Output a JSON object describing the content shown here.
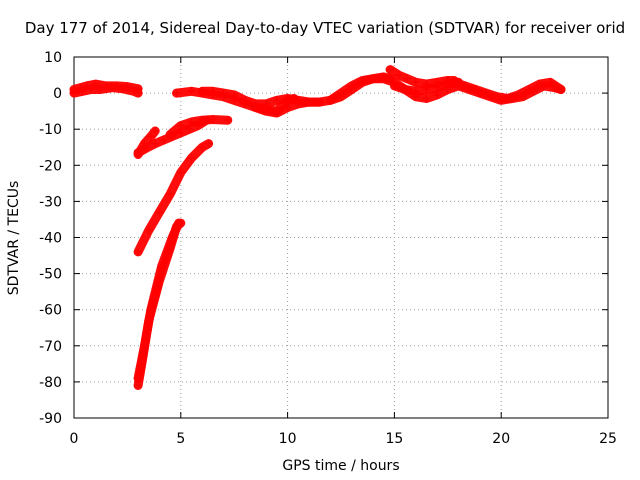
{
  "chart_data": {
    "type": "scatter",
    "title": "Day 177 of 2014, Sidereal Day-to-day VTEC variation (SDTVAR) for receiver orid",
    "xlabel": "GPS time / hours",
    "ylabel": "SDTVAR / TECUs",
    "xlim": [
      0,
      25
    ],
    "ylim": [
      -90,
      10
    ],
    "xticks": [
      "0",
      "5",
      "10",
      "15",
      "20",
      "25"
    ],
    "yticks": [
      "10",
      "0",
      "-10",
      "-20",
      "-30",
      "-40",
      "-50",
      "-60",
      "-70",
      "-80",
      "-90"
    ],
    "grid": true,
    "marker": "+",
    "color": "#ff0000",
    "series": [
      {
        "points": [
          [
            0,
            1
          ],
          [
            0.3,
            1.5
          ],
          [
            0.6,
            2
          ],
          [
            1,
            2.5
          ],
          [
            1.5,
            2
          ],
          [
            2,
            2
          ],
          [
            2.5,
            1.8
          ],
          [
            3,
            1.2
          ]
        ]
      },
      {
        "points": [
          [
            0,
            0
          ],
          [
            0.4,
            0.5
          ],
          [
            0.8,
            1
          ],
          [
            1.2,
            1
          ],
          [
            1.8,
            1.5
          ],
          [
            2.3,
            1.2
          ],
          [
            2.8,
            0.5
          ],
          [
            3,
            0
          ]
        ]
      },
      {
        "points": [
          [
            3,
            -16.5
          ],
          [
            3.4,
            -15.2
          ],
          [
            3.8,
            -14
          ],
          [
            4.2,
            -13
          ],
          [
            4.6,
            -12
          ],
          [
            5,
            -11
          ],
          [
            5.4,
            -10
          ],
          [
            5.8,
            -9
          ],
          [
            6.2,
            -7.5
          ]
        ]
      },
      {
        "points": [
          [
            3,
            -17
          ],
          [
            3.3,
            -14
          ],
          [
            3.6,
            -12
          ],
          [
            3.8,
            -10.5
          ]
        ]
      },
      {
        "points": [
          [
            4.5,
            -11.5
          ],
          [
            5,
            -9
          ],
          [
            5.5,
            -8
          ],
          [
            6,
            -7.5
          ],
          [
            6.5,
            -7.3
          ],
          [
            7.2,
            -7.5
          ]
        ]
      },
      {
        "points": [
          [
            3,
            -44
          ],
          [
            3.5,
            -38
          ],
          [
            4,
            -33
          ],
          [
            4.5,
            -28
          ],
          [
            5,
            -22
          ],
          [
            5.5,
            -18
          ],
          [
            6,
            -15
          ],
          [
            6.3,
            -14
          ]
        ]
      },
      {
        "points": [
          [
            3,
            -81
          ],
          [
            3.2,
            -74
          ],
          [
            3.5,
            -63
          ],
          [
            4,
            -52
          ],
          [
            4.5,
            -43
          ],
          [
            4.8,
            -37
          ],
          [
            5,
            -36
          ]
        ]
      },
      {
        "points": [
          [
            3,
            -79
          ],
          [
            3.3,
            -70
          ],
          [
            3.6,
            -60
          ],
          [
            4.1,
            -48
          ],
          [
            4.6,
            -40
          ],
          [
            4.9,
            -36
          ]
        ]
      },
      {
        "points": [
          [
            4.8,
            0
          ],
          [
            5.5,
            0.5
          ],
          [
            6,
            0
          ],
          [
            6.5,
            -0.5
          ],
          [
            7,
            -1
          ],
          [
            7.5,
            -2
          ],
          [
            8,
            -3
          ],
          [
            8.5,
            -4
          ],
          [
            9,
            -5
          ],
          [
            9.5,
            -5.5
          ],
          [
            10,
            -4
          ],
          [
            10.5,
            -3
          ],
          [
            11,
            -2.5
          ],
          [
            11.5,
            -2.5
          ],
          [
            12,
            -2
          ],
          [
            12.5,
            -1
          ],
          [
            13,
            1
          ],
          [
            13.5,
            3
          ],
          [
            14,
            4
          ],
          [
            14.5,
            4
          ],
          [
            15,
            3
          ],
          [
            15.5,
            1
          ],
          [
            16,
            -1
          ],
          [
            16.5,
            -1.5
          ],
          [
            17,
            -0.5
          ],
          [
            17.5,
            1
          ],
          [
            18,
            2
          ],
          [
            18.5,
            1
          ],
          [
            19,
            0
          ],
          [
            19.5,
            -1
          ],
          [
            20,
            -2
          ],
          [
            20.5,
            -1.5
          ],
          [
            21,
            -1
          ],
          [
            21.5,
            0.5
          ],
          [
            22,
            2
          ],
          [
            22.5,
            1.5
          ],
          [
            22.8,
            1
          ]
        ]
      },
      {
        "points": [
          [
            6,
            0.5
          ],
          [
            6.5,
            0.5
          ],
          [
            7,
            0
          ],
          [
            7.5,
            -0.5
          ],
          [
            8,
            -2
          ],
          [
            8.5,
            -3
          ],
          [
            9,
            -3
          ],
          [
            9.5,
            -2
          ],
          [
            10,
            -1.5
          ],
          [
            10.5,
            -2
          ],
          [
            11,
            -2.5
          ],
          [
            11.5,
            -2.5
          ]
        ]
      },
      {
        "points": [
          [
            8.5,
            -4
          ],
          [
            9,
            -4.5
          ],
          [
            9.5,
            -5
          ],
          [
            10,
            -2
          ],
          [
            10.3,
            -1.5
          ]
        ]
      },
      {
        "points": [
          [
            12,
            -2
          ],
          [
            12.5,
            0
          ],
          [
            13,
            2
          ],
          [
            13.5,
            3.5
          ],
          [
            14,
            4
          ],
          [
            14.5,
            4.5
          ],
          [
            14.8,
            4
          ]
        ]
      },
      {
        "points": [
          [
            14.8,
            6.5
          ],
          [
            15.2,
            5
          ],
          [
            15.6,
            4
          ],
          [
            16,
            3
          ],
          [
            16.5,
            2.5
          ],
          [
            17,
            3
          ],
          [
            17.5,
            3.5
          ],
          [
            17.8,
            3.5
          ]
        ]
      },
      {
        "points": [
          [
            15,
            2
          ],
          [
            15.5,
            1
          ],
          [
            16,
            0.5
          ],
          [
            16.5,
            1
          ],
          [
            17,
            1.5
          ],
          [
            17.5,
            2.5
          ],
          [
            18,
            3
          ]
        ]
      },
      {
        "points": [
          [
            17.8,
            3
          ],
          [
            18.3,
            2
          ],
          [
            18.8,
            1
          ],
          [
            19.3,
            0
          ],
          [
            19.8,
            -1
          ],
          [
            20.3,
            -1.5
          ],
          [
            20.8,
            -0.5
          ],
          [
            21.3,
            1
          ],
          [
            21.8,
            2.5
          ],
          [
            22.3,
            3
          ],
          [
            22.8,
            1
          ]
        ]
      }
    ]
  }
}
